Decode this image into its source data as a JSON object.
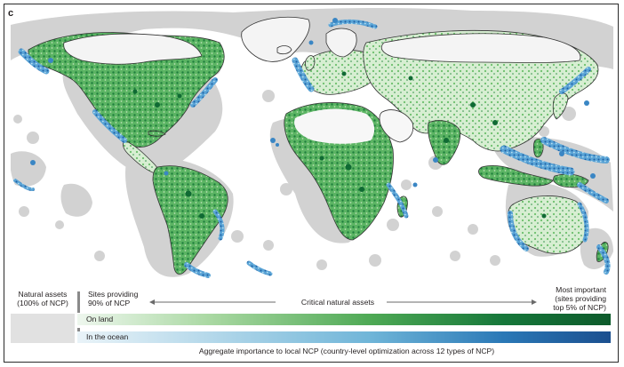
{
  "figure": {
    "panel_letter": "c"
  },
  "map": {
    "colors": {
      "ocean_background": "#ffffff",
      "land_base": "#ffffff",
      "country_border": "#333333",
      "buffer_gray": "#d2d2d2",
      "land_high": "#16773a",
      "land_mid": "#6bbd6a",
      "land_low": "#c9e6c2",
      "ocean_high": "#1f5fa3",
      "ocean_mid": "#4a95cc",
      "ocean_low": "#a6cde6"
    }
  },
  "legend": {
    "natural_assets": "Natural assets\n(100% of NCP)",
    "sites_90": "Sites providing\n90% of NCP",
    "critical": "Critical natural assets",
    "most_important": "Most important\n(sites providing\ntop 5% of NCP)",
    "on_land": "On land",
    "in_ocean": "In the ocean",
    "caption": "Aggregate importance to local NCP (country-level optimization across 12 types of NCP)"
  }
}
